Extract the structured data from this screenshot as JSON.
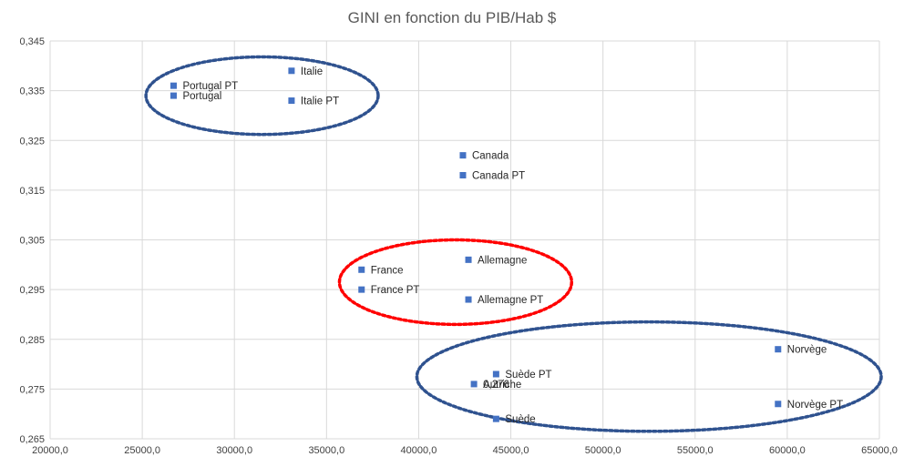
{
  "chart_data": {
    "type": "scatter",
    "title": "GINI en fonction du PIB/Hab $",
    "xlabel": "",
    "ylabel": "",
    "xlim": [
      20000,
      65000
    ],
    "ylim": [
      0.265,
      0.345
    ],
    "x_ticks": [
      "20000,0",
      "25000,0",
      "30000,0",
      "35000,0",
      "40000,0",
      "45000,0",
      "50000,0",
      "55000,0",
      "60000,0",
      "65000,0"
    ],
    "y_ticks": [
      "0,265",
      "0,275",
      "0,285",
      "0,295",
      "0,305",
      "0,315",
      "0,325",
      "0,335",
      "0,345"
    ],
    "grid": "vertical and horizontal",
    "legend": "none",
    "marker_color": "#4472C4",
    "points": [
      {
        "label": "Italie",
        "x": 33100,
        "y": 0.339
      },
      {
        "label": "Italie PT",
        "x": 33100,
        "y": 0.333
      },
      {
        "label": "Portugal PT",
        "x": 26700,
        "y": 0.336
      },
      {
        "label": "Portugal",
        "x": 26700,
        "y": 0.334
      },
      {
        "label": "Canada",
        "x": 42400,
        "y": 0.322
      },
      {
        "label": "Canada PT",
        "x": 42400,
        "y": 0.318
      },
      {
        "label": "Allemagne",
        "x": 42700,
        "y": 0.301
      },
      {
        "label": "Allemagne PT",
        "x": 42700,
        "y": 0.293
      },
      {
        "label": "France",
        "x": 36900,
        "y": 0.299
      },
      {
        "label": "France PT",
        "x": 36900,
        "y": 0.295
      },
      {
        "label": "Norvège",
        "x": 59500,
        "y": 0.283
      },
      {
        "label": "Norvège PT",
        "x": 59500,
        "y": 0.272
      },
      {
        "label": "Suède PT",
        "x": 44200,
        "y": 0.278
      },
      {
        "label": "Suède",
        "x": 44200,
        "y": 0.269
      },
      {
        "label": "Autriche",
        "x": 43000,
        "y": 0.276
      },
      {
        "label": "0,276",
        "x": 43000,
        "y": 0.276
      }
    ],
    "annotations": [
      {
        "shape": "ellipse",
        "color": "#2F528F",
        "cx": 31500,
        "cy": 0.334,
        "rx": 6300,
        "ry": 0.0078
      },
      {
        "shape": "ellipse",
        "color": "#FF0000",
        "cx": 42000,
        "cy": 0.2965,
        "rx": 6300,
        "ry": 0.0085
      },
      {
        "shape": "ellipse",
        "color": "#2F528F",
        "cx": 52500,
        "cy": 0.2775,
        "rx": 12600,
        "ry": 0.011
      }
    ]
  }
}
